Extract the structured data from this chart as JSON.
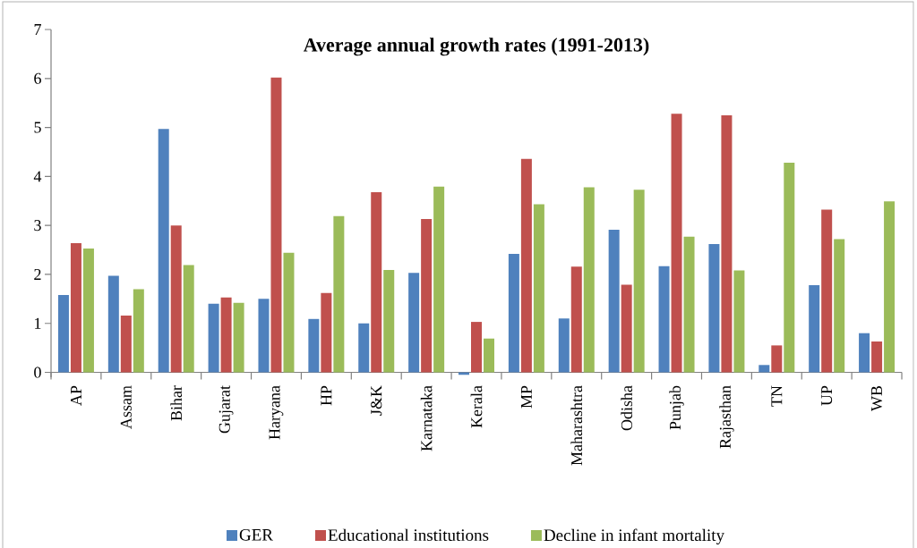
{
  "chart_data": {
    "type": "bar",
    "title": "Average annual growth rates (1991-2013)",
    "categories": [
      "AP",
      "Assam",
      "Bihar",
      "Gujarat",
      "Haryana",
      "HP",
      "J&K",
      "Karnataka",
      "Kerala",
      "MP",
      "Maharashtra",
      "Odisha",
      "Punjab",
      "Rajasthan",
      "TN",
      "UP",
      "WB"
    ],
    "series": [
      {
        "name": "GER",
        "color": "#4f81bd",
        "values": [
          1.58,
          1.97,
          4.97,
          1.4,
          1.5,
          1.09,
          1.0,
          2.03,
          -0.05,
          2.42,
          1.1,
          2.91,
          2.17,
          2.62,
          0.15,
          1.78,
          0.8
        ]
      },
      {
        "name": "Educational institutions",
        "color": "#c0504d",
        "values": [
          2.64,
          1.16,
          3.0,
          1.53,
          6.02,
          1.62,
          3.68,
          3.13,
          1.03,
          4.36,
          2.16,
          1.79,
          5.28,
          5.25,
          0.55,
          3.32,
          0.63
        ]
      },
      {
        "name": "Decline in infant mortality",
        "color": "#9bbb59",
        "values": [
          2.53,
          1.7,
          2.19,
          1.42,
          2.44,
          3.19,
          2.09,
          3.79,
          0.69,
          3.43,
          3.78,
          3.73,
          2.77,
          2.08,
          4.28,
          2.72,
          3.49
        ]
      }
    ],
    "ylim": [
      -0.1,
      7
    ],
    "yticks": [
      0,
      1,
      2,
      3,
      4,
      5,
      6,
      7
    ],
    "grid": false,
    "legend": "bottom"
  }
}
